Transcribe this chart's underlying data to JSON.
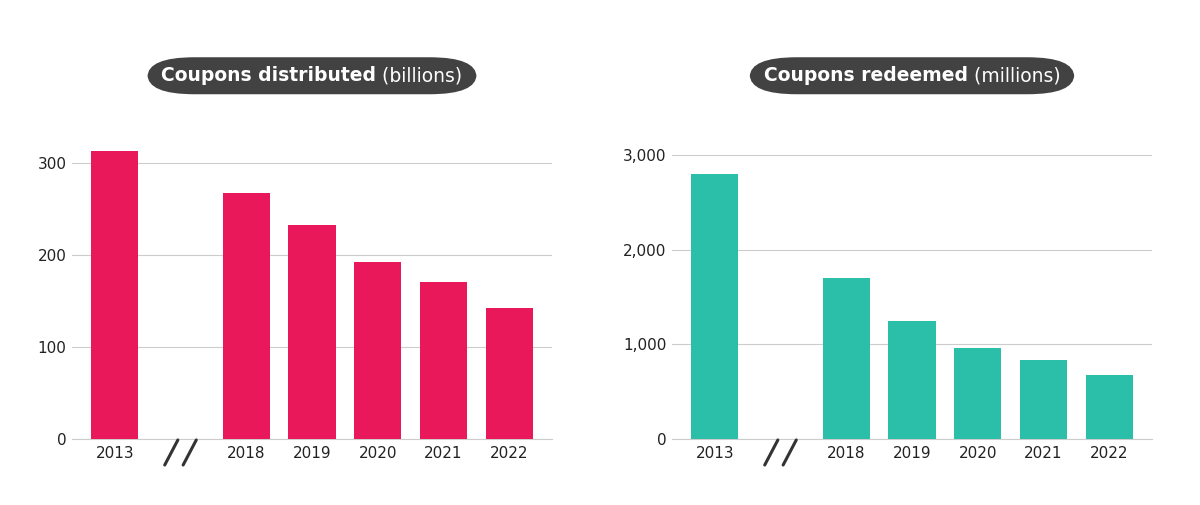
{
  "left": {
    "title_bold": "Coupons distributed",
    "title_normal": " (billions)",
    "categories": [
      "2013",
      "2018",
      "2019",
      "2020",
      "2021",
      "2022"
    ],
    "values": [
      313,
      268,
      233,
      193,
      171,
      143
    ],
    "bar_color": "#E8185A",
    "yticks": [
      0,
      100,
      200,
      300
    ],
    "ylim": [
      0,
      340
    ]
  },
  "right": {
    "title_bold": "Coupons redeemed",
    "title_normal": " (millions)",
    "categories": [
      "2013",
      "2018",
      "2019",
      "2020",
      "2021",
      "2022"
    ],
    "values": [
      2800,
      1700,
      1250,
      960,
      840,
      680
    ],
    "bar_color": "#2BBFAA",
    "yticks": [
      0,
      1000,
      2000,
      3000
    ],
    "ylim": [
      0,
      3300
    ]
  },
  "bg_color": "#ffffff",
  "title_box_color": "#424242",
  "grid_color": "#cccccc",
  "tick_color": "#222222",
  "break_color": "#333333"
}
